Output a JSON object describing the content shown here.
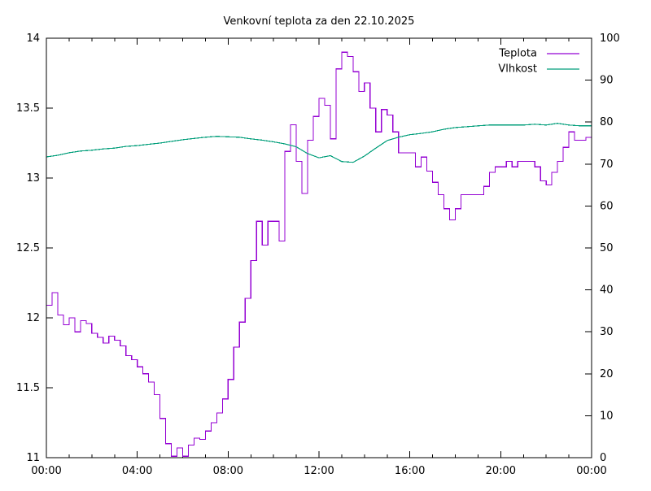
{
  "chart_data": {
    "type": "line",
    "title": "Venkovní teplota za den 22.10.2025",
    "x_axis": {
      "unit": "time",
      "min_hours": 0,
      "max_hours": 24,
      "major_tick_hours": 4,
      "minor_tick_hours": 1,
      "tick_labels": [
        "00:00",
        "04:00",
        "08:00",
        "12:00",
        "16:00",
        "20:00",
        "00:00"
      ]
    },
    "y_axis_left": {
      "label": "",
      "min": 11,
      "max": 14,
      "tick_step": 0.5,
      "tick_labels": [
        "11",
        "11.5",
        "12",
        "12.5",
        "13",
        "13.5",
        "14"
      ]
    },
    "y_axis_right": {
      "label": "",
      "min": 0,
      "max": 100,
      "tick_step": 10,
      "tick_labels": [
        "0",
        "10",
        "20",
        "30",
        "40",
        "50",
        "60",
        "70",
        "80",
        "90",
        "100"
      ]
    },
    "grid": "off",
    "legend_position": "top-right-inside",
    "series": [
      {
        "name": "Teplota",
        "color": "#9400d3",
        "y_axis": "left",
        "line_style": "step",
        "x0_hours": 0,
        "dx_hours": 0.25,
        "values": [
          12.09,
          12.18,
          12.02,
          11.95,
          12.0,
          11.9,
          11.98,
          11.96,
          11.89,
          11.86,
          11.82,
          11.87,
          11.84,
          11.8,
          11.73,
          11.7,
          11.65,
          11.6,
          11.54,
          11.45,
          11.28,
          11.1,
          11.01,
          11.07,
          11.01,
          11.09,
          11.14,
          11.13,
          11.19,
          11.25,
          11.32,
          11.42,
          11.56,
          11.79,
          11.97,
          12.14,
          12.41,
          12.69,
          12.52,
          12.69,
          12.69,
          12.55,
          13.19,
          13.38,
          13.12,
          12.89,
          13.27,
          13.44,
          13.57,
          13.52,
          13.28,
          13.78,
          13.9,
          13.87,
          13.76,
          13.62,
          13.68,
          13.5,
          13.33,
          13.49,
          13.45,
          13.33,
          13.18,
          13.18,
          13.18,
          13.08,
          13.15,
          13.05,
          12.97,
          12.88,
          12.78,
          12.7,
          12.78,
          12.88,
          12.88,
          12.88,
          12.88,
          12.94,
          13.04,
          13.08,
          13.08,
          13.12,
          13.08,
          13.12,
          13.12,
          13.12,
          13.08,
          12.98,
          12.95,
          13.04,
          13.12,
          13.22,
          13.33,
          13.27,
          13.27,
          13.29,
          13.36
        ]
      },
      {
        "name": "Vlhkost",
        "color": "#009e7a",
        "y_axis": "right",
        "line_style": "linear",
        "x0_hours": 0,
        "dx_hours": 0.5,
        "values": [
          71.7,
          72.1,
          72.7,
          73.1,
          73.3,
          73.6,
          73.8,
          74.2,
          74.4,
          74.7,
          75.0,
          75.4,
          75.8,
          76.1,
          76.4,
          76.6,
          76.5,
          76.4,
          76.0,
          75.7,
          75.3,
          74.8,
          74.1,
          72.5,
          71.5,
          72.0,
          70.6,
          70.4,
          71.9,
          73.8,
          75.6,
          76.4,
          77.0,
          77.3,
          77.7,
          78.3,
          78.7,
          78.9,
          79.1,
          79.3,
          79.3,
          79.3,
          79.3,
          79.5,
          79.3,
          79.7,
          79.3,
          79.1,
          79.1
        ]
      }
    ]
  },
  "plot_style": {
    "background": "#ffffff",
    "border_color": "#000000",
    "text_color": "#000000"
  }
}
